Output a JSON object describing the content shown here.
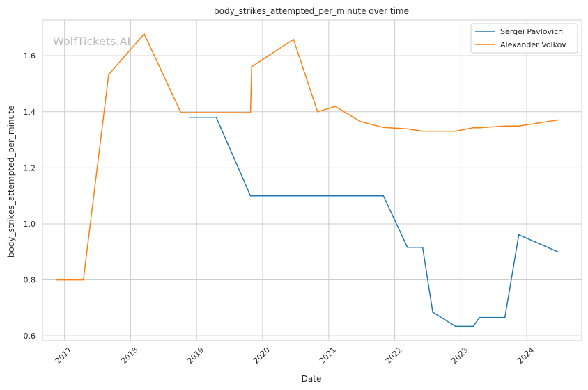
{
  "chart_data": {
    "type": "line",
    "title": "body_strikes_attempted_per_minute over time",
    "xlabel": "Date",
    "ylabel": "body_strikes_attempted_per_minute",
    "watermark": "WolfTickets.AI",
    "x_ticks": [
      "2017",
      "2018",
      "2019",
      "2020",
      "2021",
      "2022",
      "2023",
      "2024"
    ],
    "y_ticks": [
      "0.6",
      "0.8",
      "1.0",
      "1.2",
      "1.4",
      "1.6"
    ],
    "xlim": [
      "2016-09-01",
      "2024-10-31"
    ],
    "ylim": [
      0.583,
      1.727
    ],
    "grid": true,
    "legend_position": "top-right",
    "series": [
      {
        "name": "Sergei Pavlovich",
        "color": "#1f77b4",
        "points": [
          [
            "2018-11-24",
            1.38
          ],
          [
            "2019-04-20",
            1.38
          ],
          [
            "2019-10-26",
            1.1
          ],
          [
            "2021-10-30",
            1.1
          ],
          [
            "2022-03-12",
            0.916
          ],
          [
            "2022-06-04",
            0.916
          ],
          [
            "2022-07-30",
            0.685
          ],
          [
            "2022-12-03",
            0.634
          ],
          [
            "2023-03-11",
            0.634
          ],
          [
            "2023-04-15",
            0.666
          ],
          [
            "2023-09-02",
            0.666
          ],
          [
            "2023-11-18",
            0.961
          ],
          [
            "2024-06-22",
            0.9
          ]
        ]
      },
      {
        "name": "Alexander Volkov",
        "color": "#ff7f0e",
        "points": [
          [
            "2016-11-19",
            0.8
          ],
          [
            "2017-04-15",
            0.8
          ],
          [
            "2017-09-02",
            1.533
          ],
          [
            "2018-03-17",
            1.678
          ],
          [
            "2018-10-06",
            1.397
          ],
          [
            "2019-10-26",
            1.397
          ],
          [
            "2019-11-02",
            1.561
          ],
          [
            "2020-06-20",
            1.658
          ],
          [
            "2020-10-31",
            1.4
          ],
          [
            "2021-02-06",
            1.419
          ],
          [
            "2021-06-26",
            1.365
          ],
          [
            "2021-10-30",
            1.344
          ],
          [
            "2022-03-12",
            1.339
          ],
          [
            "2022-06-04",
            1.331
          ],
          [
            "2022-12-03",
            1.331
          ],
          [
            "2023-03-11",
            1.343
          ],
          [
            "2023-04-15",
            1.343
          ],
          [
            "2023-09-02",
            1.349
          ],
          [
            "2023-11-18",
            1.349
          ],
          [
            "2024-06-22",
            1.371
          ]
        ]
      }
    ]
  }
}
